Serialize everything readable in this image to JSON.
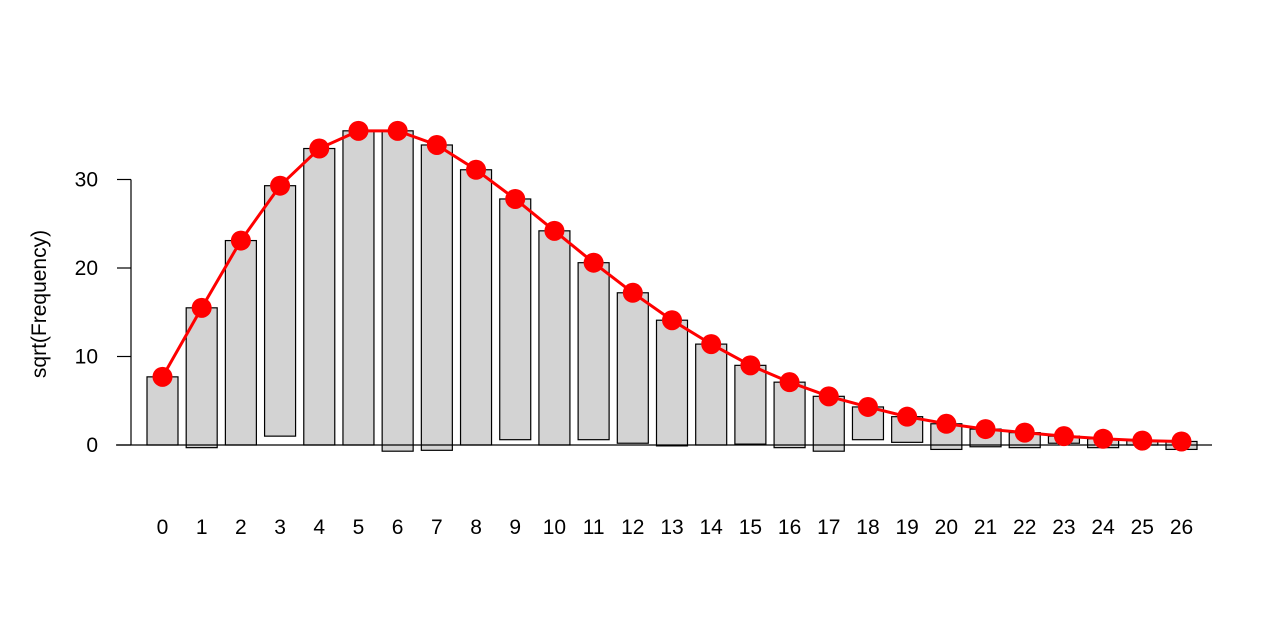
{
  "chart_data": {
    "type": "bar",
    "plot_kind": "hanging rootogram",
    "title": "",
    "xlabel": "",
    "ylabel": "sqrt(Frequency)",
    "x": [
      0,
      1,
      2,
      3,
      4,
      5,
      6,
      7,
      8,
      9,
      10,
      11,
      12,
      13,
      14,
      15,
      16,
      17,
      18,
      19,
      20,
      21,
      22,
      23,
      24,
      25,
      26
    ],
    "x_tick_labels": [
      "0",
      "1",
      "2",
      "3",
      "4",
      "5",
      "6",
      "7",
      "8",
      "9",
      "10",
      "11",
      "12",
      "13",
      "14",
      "15",
      "16",
      "17",
      "18",
      "19",
      "20",
      "21",
      "22",
      "23",
      "24",
      "25",
      "26"
    ],
    "ylim": [
      -5,
      40
    ],
    "y_ticks": [
      0,
      10,
      20,
      30
    ],
    "y_tick_labels": [
      "0",
      "10",
      "20",
      "30"
    ],
    "series": [
      {
        "values": [
          7.7,
          15.5,
          23.1,
          29.3,
          33.5,
          35.5,
          35.5,
          33.9,
          31.1,
          27.8,
          24.2,
          20.6,
          17.2,
          14.1,
          11.4,
          9.0,
          7.1,
          5.5,
          4.3,
          3.2,
          2.4,
          1.8,
          1.4,
          1.0,
          0.7,
          0.5,
          0.4
        ]
      },
      {
        "values": [
          7.7,
          15.8,
          23.1,
          28.3,
          33.5,
          35.5,
          36.2,
          34.5,
          31.1,
          27.2,
          24.2,
          20.0,
          17.0,
          14.2,
          11.4,
          8.9,
          7.4,
          6.2,
          3.7,
          2.9,
          2.9,
          2.0,
          1.7,
          0.8,
          1.0,
          0.5,
          0.9
        ]
      }
    ],
    "colors": {
      "bar_fill": "#d3d3d3",
      "bar_stroke": "#000000",
      "line": "#ff0000",
      "points": "#ff0000"
    }
  }
}
